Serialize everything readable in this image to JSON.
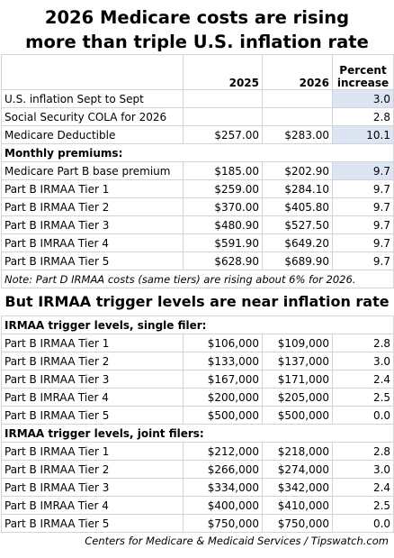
{
  "title_line1": "2026 Medicare costs are rising",
  "title_line2": "more than triple U.S. inflation rate",
  "header": {
    "col2025": "2025",
    "col2026": "2026",
    "pct_line1": "Percent",
    "pct_line2": "increase"
  },
  "top_rows": [
    {
      "label": "U.S. inflation Sept to Sept",
      "v2025": "",
      "v2026": "",
      "pct": "3.0",
      "hl": true
    },
    {
      "label": "Social Security COLA for 2026",
      "v2025": "",
      "v2026": "",
      "pct": "2.8",
      "hl": false
    },
    {
      "label": "Medicare Deductible",
      "v2025": "$257.00",
      "v2026": "$283.00",
      "pct": "10.1",
      "hl": true
    }
  ],
  "monthly_header": "Monthly premiums:",
  "premium_rows": [
    {
      "label": "Medicare Part B base premium",
      "v2025": "$185.00",
      "v2026": "$202.90",
      "pct": "9.7",
      "hl": true
    },
    {
      "label": "Part B IRMAA Tier 1",
      "v2025": "$259.00",
      "v2026": "$284.10",
      "pct": "9.7",
      "hl": false
    },
    {
      "label": "Part B IRMAA Tier 2",
      "v2025": "$370.00",
      "v2026": "$405.80",
      "pct": "9.7",
      "hl": false
    },
    {
      "label": "Part B IRMAA Tier 3",
      "v2025": "$480.90",
      "v2026": "$527.50",
      "pct": "9.7",
      "hl": false
    },
    {
      "label": "Part B IMRAA Tier 4",
      "v2025": "$591.90",
      "v2026": "$649.20",
      "pct": "9.7",
      "hl": false
    },
    {
      "label": "Part B IRMAA Tier 5",
      "v2025": "$628.90",
      "v2026": "$689.90",
      "pct": "9.7",
      "hl": false
    }
  ],
  "note": "Note: Part D IRMAA costs (same tiers) are rising about 6% for 2026.",
  "subtitle": "But IRMAA trigger levels are near inflation rate",
  "single_header": "IRMAA trigger levels, single filer:",
  "single_rows": [
    {
      "label": "Part B IRMAA Tier 1",
      "v2025": "$106,000",
      "v2026": "$109,000",
      "pct": "2.8"
    },
    {
      "label": "Part B IRMAA Tier 2",
      "v2025": "$133,000",
      "v2026": "$137,000",
      "pct": "3.0"
    },
    {
      "label": "Part B IRMAA Tier 3",
      "v2025": "$167,000",
      "v2026": "$171,000",
      "pct": "2.4"
    },
    {
      "label": "Part B IMRAA Tier 4",
      "v2025": "$200,000",
      "v2026": "$205,000",
      "pct": "2.5"
    },
    {
      "label": "Part B IRMAA Tier 5",
      "v2025": "$500,000",
      "v2026": "$500,000",
      "pct": "0.0"
    }
  ],
  "joint_header": "IRMAA trigger levels, joint filers:",
  "joint_rows": [
    {
      "label": "Part B IRMAA Tier 1",
      "v2025": "$212,000",
      "v2026": "$218,000",
      "pct": "2.8"
    },
    {
      "label": "Part B IRMAA Tier 2",
      "v2025": "$266,000",
      "v2026": "$274,000",
      "pct": "3.0"
    },
    {
      "label": "Part B IRMAA Tier 3",
      "v2025": "$334,000",
      "v2026": "$342,000",
      "pct": "2.4"
    },
    {
      "label": "Part B IMRAA Tier 4",
      "v2025": "$400,000",
      "v2026": "$410,000",
      "pct": "2.5"
    },
    {
      "label": "Part B IRMAA Tier 5",
      "v2025": "$750,000",
      "v2026": "$750,000",
      "pct": "0.0"
    }
  ],
  "source": "Centers for Medicare & Medicaid Services / Tipswatch.com",
  "colors": {
    "highlight": "#dde4f2",
    "grid": "#d4d4d4"
  }
}
